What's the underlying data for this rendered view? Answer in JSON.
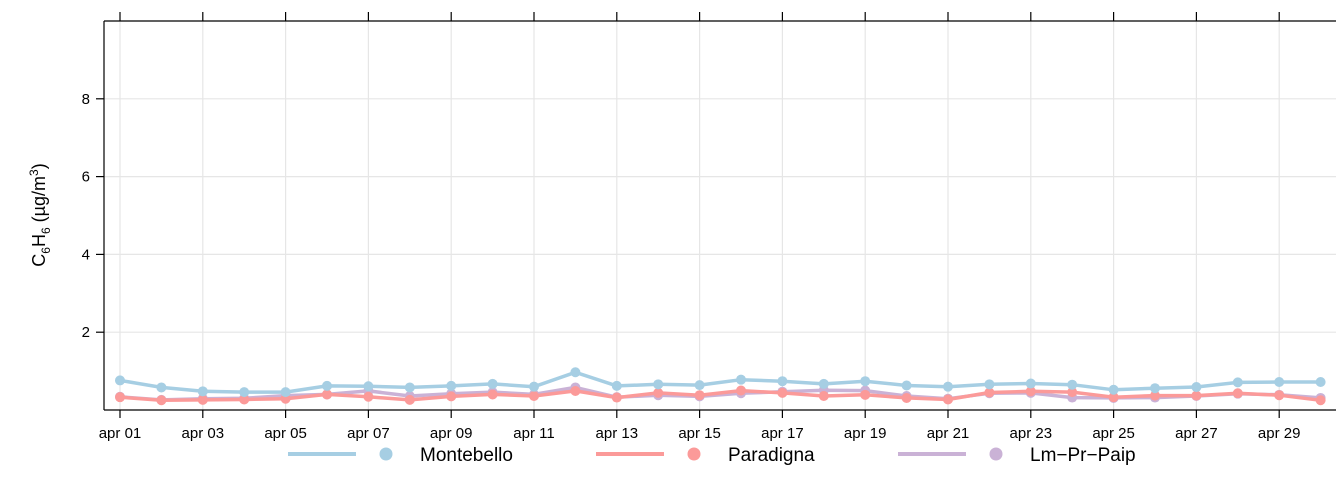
{
  "chart_data": {
    "type": "line",
    "ylabel": {
      "pre": "C",
      "sub1": "6",
      "mid": "H",
      "sub2": "6",
      "unit_open": " (µg/m",
      "sup": "3",
      "unit_close": ")"
    },
    "ylim": [
      0,
      10
    ],
    "yticks": [
      2,
      4,
      6,
      8
    ],
    "grid": true,
    "legend_position": "bottom",
    "x": [
      "apr 01",
      "apr 02",
      "apr 03",
      "apr 04",
      "apr 05",
      "apr 06",
      "apr 07",
      "apr 08",
      "apr 09",
      "apr 10",
      "apr 11",
      "apr 12",
      "apr 13",
      "apr 14",
      "apr 15",
      "apr 16",
      "apr 17",
      "apr 18",
      "apr 19",
      "apr 20",
      "apr 21",
      "apr 22",
      "apr 23",
      "apr 24",
      "apr 25",
      "apr 26",
      "apr 27",
      "apr 28",
      "apr 29",
      "apr 30"
    ],
    "xtick_labels": [
      "apr 01",
      "apr 03",
      "apr 05",
      "apr 07",
      "apr 09",
      "apr 11",
      "apr 13",
      "apr 15",
      "apr 17",
      "apr 19",
      "apr 21",
      "apr 23",
      "apr 25",
      "apr 27",
      "apr 29"
    ],
    "series": [
      {
        "name": "Montebello",
        "color": "#a6cee3",
        "values": [
          0.76,
          0.58,
          0.48,
          0.46,
          0.46,
          0.62,
          0.61,
          0.58,
          0.62,
          0.67,
          0.6,
          0.97,
          0.62,
          0.66,
          0.64,
          0.78,
          0.74,
          0.67,
          0.74,
          0.63,
          0.6,
          0.66,
          0.68,
          0.65,
          0.52,
          0.56,
          0.59,
          0.71,
          0.72,
          0.72
        ]
      },
      {
        "name": "Paradigna",
        "color": "#fb9a99",
        "values": [
          0.33,
          0.25,
          0.26,
          0.27,
          0.29,
          0.4,
          0.34,
          0.26,
          0.35,
          0.4,
          0.36,
          0.49,
          0.32,
          0.44,
          0.38,
          0.5,
          0.44,
          0.36,
          0.39,
          0.31,
          0.27,
          0.45,
          0.48,
          0.46,
          0.33,
          0.37,
          0.37,
          0.43,
          0.38,
          0.25
        ]
      },
      {
        "name": "Lm−Pr−Paip",
        "color": "#cab2d6",
        "values": [
          0.34,
          0.26,
          0.29,
          0.3,
          0.37,
          0.4,
          0.49,
          0.36,
          0.42,
          0.46,
          0.4,
          0.58,
          0.33,
          0.38,
          0.35,
          0.43,
          0.47,
          0.51,
          0.5,
          0.36,
          0.29,
          0.43,
          0.44,
          0.32,
          0.31,
          0.32,
          0.36,
          0.42,
          0.39,
          0.31
        ]
      }
    ]
  }
}
